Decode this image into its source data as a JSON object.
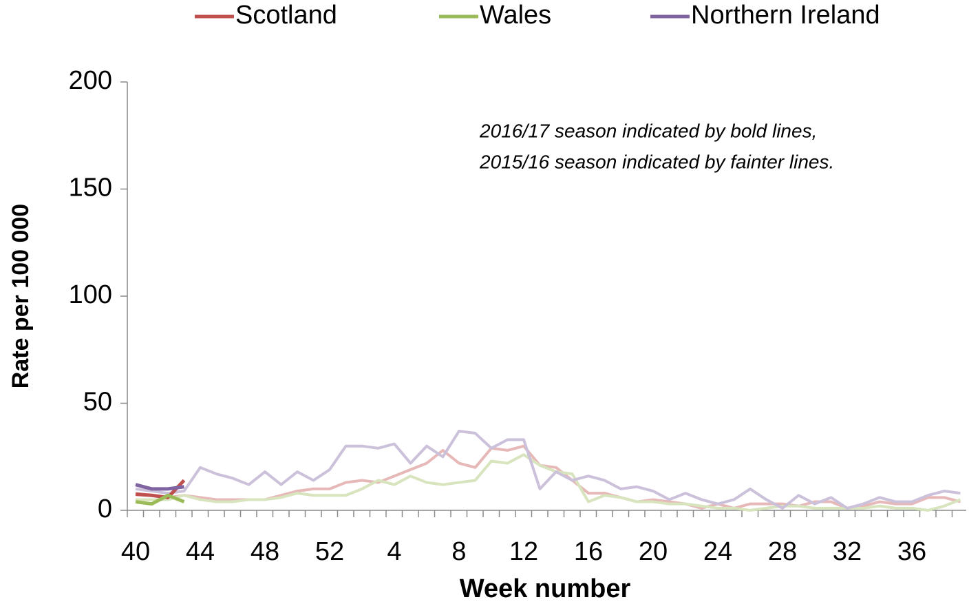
{
  "chart_data": {
    "type": "line",
    "categories": [
      "40",
      null,
      null,
      null,
      "44",
      null,
      null,
      null,
      "48",
      null,
      null,
      null,
      "52",
      null,
      null,
      null,
      "4",
      null,
      null,
      null,
      "8",
      null,
      null,
      null,
      "12",
      null,
      null,
      null,
      "16",
      null,
      null,
      null,
      "20",
      null,
      null,
      null,
      "24",
      null,
      null,
      null,
      "28",
      null,
      null,
      null,
      "32",
      null,
      null,
      null,
      "36",
      null,
      null,
      null
    ],
    "x_label": "Week number",
    "y_label": "Rate per 100 000",
    "ylim": [
      0,
      200
    ],
    "yticks": [
      0,
      50,
      100,
      150,
      200
    ],
    "annotation": [
      "2016/17 season indicated by bold lines,",
      "2015/16 season indicated by fainter lines."
    ],
    "series": [
      {
        "color": "#e6b9b8",
        "values": [
          8,
          7,
          6,
          7,
          6,
          5,
          5,
          5,
          5,
          7,
          9,
          10,
          10,
          13,
          14,
          13,
          16,
          19,
          22,
          28,
          22,
          20,
          29,
          28,
          30,
          21,
          20,
          14,
          8,
          8,
          6,
          4,
          5,
          4,
          3,
          1,
          3,
          1,
          3,
          3,
          3,
          2,
          4,
          4,
          1,
          2,
          4,
          3,
          3,
          6,
          6,
          4
        ]
      },
      {
        "color": "#d7e4bd",
        "values": [
          5,
          5,
          5,
          7,
          5,
          4,
          4,
          5,
          5,
          6,
          8,
          7,
          7,
          7,
          10,
          14,
          12,
          16,
          13,
          12,
          13,
          14,
          23,
          22,
          26,
          21,
          18,
          17,
          4,
          7,
          6,
          4,
          4,
          3,
          3,
          2,
          1,
          1,
          0,
          1,
          2,
          2,
          1,
          1,
          1,
          1,
          2,
          1,
          1,
          0,
          2,
          5
        ]
      },
      {
        "color": "#ccc1da",
        "values": [
          10,
          9,
          8,
          9,
          20,
          17,
          15,
          12,
          18,
          12,
          18,
          14,
          19,
          30,
          30,
          29,
          31,
          22,
          30,
          25,
          37,
          36,
          29,
          33,
          33,
          10,
          18,
          14,
          16,
          14,
          10,
          11,
          9,
          5,
          8,
          5,
          3,
          5,
          10,
          5,
          1,
          7,
          3,
          6,
          1,
          3,
          6,
          4,
          4,
          7,
          9,
          8
        ]
      },
      {
        "name": "Scotland",
        "color": "#c0504d",
        "values": [
          7.5,
          7,
          6,
          14,
          null,
          null,
          null,
          null,
          null,
          null,
          null,
          null,
          null,
          null,
          null,
          null,
          null,
          null,
          null,
          null,
          null,
          null,
          null,
          null,
          null,
          null,
          null,
          null,
          null,
          null,
          null,
          null,
          null,
          null,
          null,
          null,
          null,
          null,
          null,
          null,
          null,
          null,
          null,
          null,
          null,
          null,
          null,
          null,
          null,
          null,
          null,
          null
        ]
      },
      {
        "name": "Wales",
        "color": "#9bbb59",
        "values": [
          4,
          3,
          7,
          4,
          null,
          null,
          null,
          null,
          null,
          null,
          null,
          null,
          null,
          null,
          null,
          null,
          null,
          null,
          null,
          null,
          null,
          null,
          null,
          null,
          null,
          null,
          null,
          null,
          null,
          null,
          null,
          null,
          null,
          null,
          null,
          null,
          null,
          null,
          null,
          null,
          null,
          null,
          null,
          null,
          null,
          null,
          null,
          null,
          null,
          null,
          null,
          null
        ]
      },
      {
        "name": "Northern Ireland",
        "color": "#8064a2",
        "values": [
          12,
          10,
          10,
          11,
          null,
          null,
          null,
          null,
          null,
          null,
          null,
          null,
          null,
          null,
          null,
          null,
          null,
          null,
          null,
          null,
          null,
          null,
          null,
          null,
          null,
          null,
          null,
          null,
          null,
          null,
          null,
          null,
          null,
          null,
          null,
          null,
          null,
          null,
          null,
          null,
          null,
          null,
          null,
          null,
          null,
          null,
          null,
          null,
          null,
          null,
          null,
          null
        ]
      }
    ]
  }
}
